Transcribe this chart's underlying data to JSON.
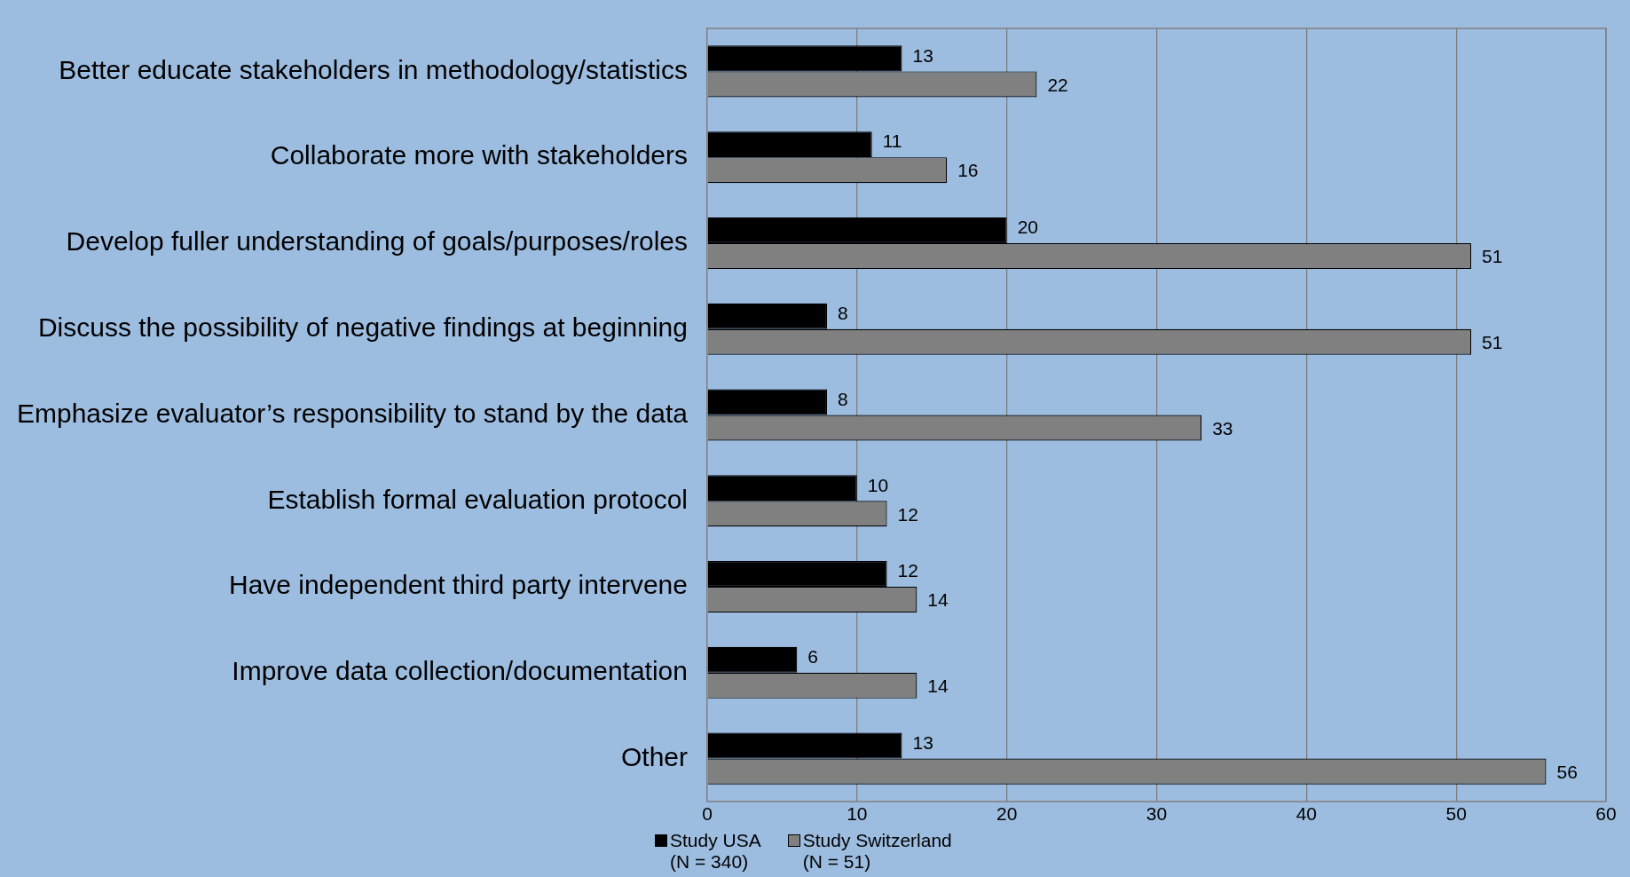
{
  "chart_data": {
    "type": "bar",
    "orientation": "horizontal",
    "categories": [
      "Better educate stakeholders in methodology/statistics",
      "Collaborate more with stakeholders",
      "Develop fuller understanding of goals/purposes/roles",
      "Discuss the possibility of negative findings at beginning",
      "Emphasize evaluator’s responsibility to stand by the data",
      "Establish formal evaluation protocol",
      "Have independent third party intervene",
      "Improve data collection/documentation",
      "Other"
    ],
    "series": [
      {
        "name": "Study USA\n(N = 340)",
        "color": "#000000",
        "values": [
          13,
          11,
          20,
          8,
          8,
          10,
          12,
          6,
          13
        ]
      },
      {
        "name": "Study Switzerland\n(N = 51)",
        "color": "#808080",
        "values": [
          22,
          16,
          51,
          51,
          33,
          12,
          14,
          14,
          56
        ]
      }
    ],
    "xlim": [
      0,
      60
    ],
    "xticks": [
      0,
      10,
      20,
      30,
      40,
      50,
      60
    ],
    "grid": "x",
    "legend": "bottom",
    "data_labels": true
  }
}
